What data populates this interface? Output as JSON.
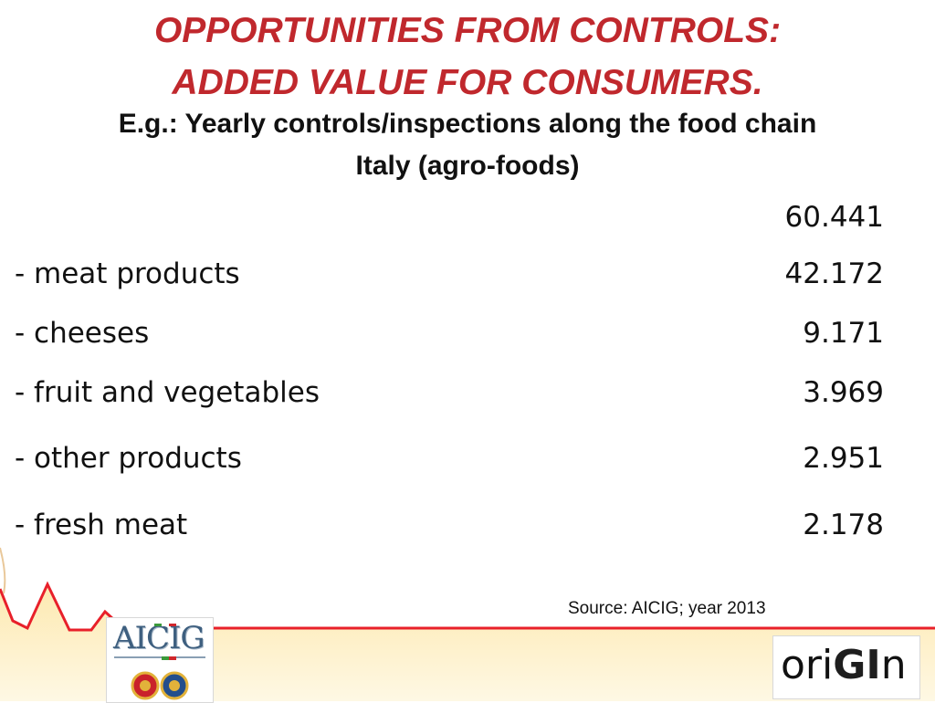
{
  "slide": {
    "title_line1": "OPPORTUNITIES FROM CONTROLS:",
    "title_line2": "ADDED VALUE FOR CONSUMERS.",
    "subtitle_line1": "E.g.: Yearly controls/inspections along the food chain",
    "subtitle_line2": "Italy (agro-foods)",
    "total": "60.441",
    "rows": [
      {
        "label": "- meat products",
        "value": "42.172"
      },
      {
        "label": "- cheeses",
        "value": "9.171"
      },
      {
        "label": "- fruit and vegetables",
        "value": "3.969"
      },
      {
        "label": "- other products",
        "value": "2.951"
      },
      {
        "label": "- fresh meat",
        "value": "2.178"
      }
    ],
    "source": "Source: AICIG; year 2013"
  },
  "logos": {
    "aicig": "AICIG",
    "origin_pre": "ori",
    "origin_hl": "GI",
    "origin_post": "n"
  },
  "colors": {
    "title": "#c0282d",
    "footer_band": "#fdf3d2",
    "wave_line": "#e8202a"
  }
}
